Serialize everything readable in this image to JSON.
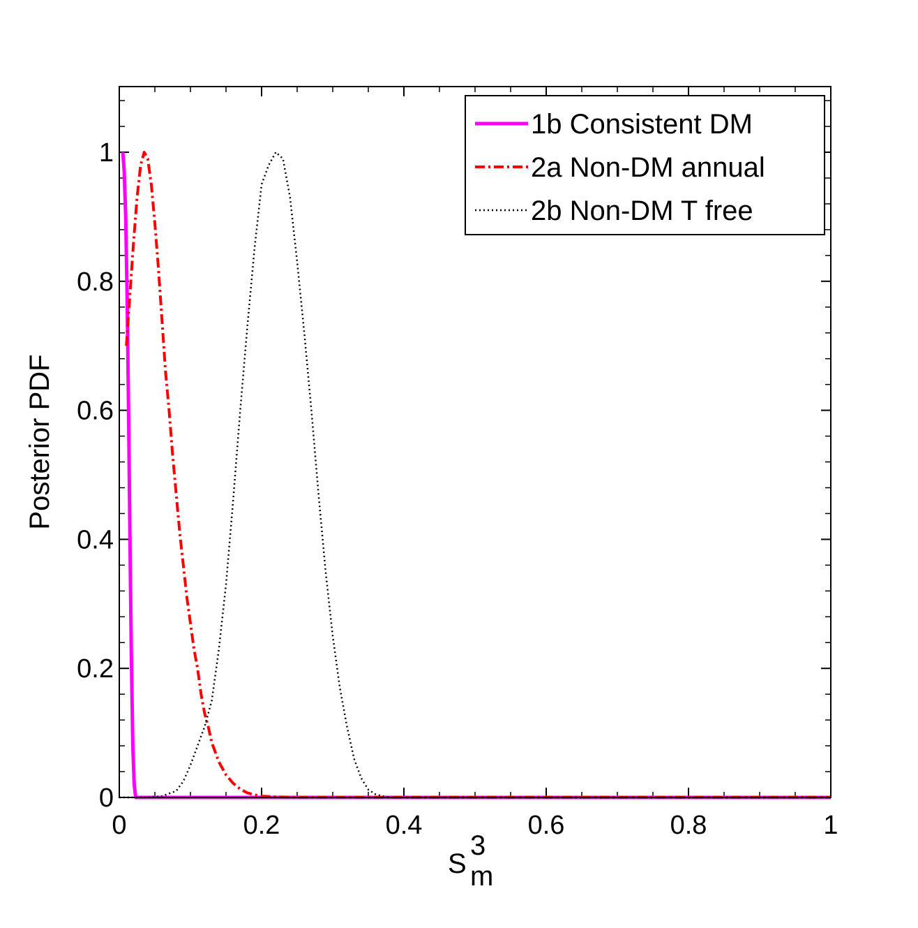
{
  "chart_data": {
    "type": "line",
    "title": "",
    "xlabel": "S",
    "xlabel_superscript": "3",
    "xlabel_subscript": "m",
    "ylabel": "Posterior PDF",
    "xlim": [
      0,
      1
    ],
    "ylim": [
      0,
      1.1
    ],
    "x_ticks": [
      0,
      0.2,
      0.4,
      0.6,
      0.8,
      1
    ],
    "x_tick_labels": [
      "0",
      "0.2",
      "0.4",
      "0.6",
      "0.8",
      "1"
    ],
    "y_ticks": [
      0,
      0.2,
      0.4,
      0.6,
      0.8,
      1
    ],
    "y_tick_labels": [
      "0",
      "0.2",
      "0.4",
      "0.6",
      "0.8",
      "1"
    ],
    "x_minor_step": 0.05,
    "y_minor_step": 0.04,
    "grid": false,
    "legend_position": "top-right",
    "series": [
      {
        "name": "1b Consistent DM",
        "color": "#ff00ff",
        "style": "solid",
        "x": [
          0.005,
          0.007,
          0.009,
          0.011,
          0.013,
          0.015,
          0.017,
          0.019,
          0.021,
          0.023,
          0.03,
          0.1,
          0.3,
          0.5,
          0.7,
          0.9,
          1.0
        ],
        "y": [
          1.0,
          0.97,
          0.9,
          0.78,
          0.6,
          0.4,
          0.22,
          0.08,
          0.02,
          0.0,
          0.0,
          0.0,
          0.0,
          0.0,
          0.0,
          0.0,
          0.0
        ]
      },
      {
        "name": "2a Non-DM annual",
        "color": "#ff0000",
        "style": "dashdot",
        "x": [
          0.01,
          0.015,
          0.02,
          0.025,
          0.03,
          0.035,
          0.04,
          0.045,
          0.05,
          0.055,
          0.06,
          0.065,
          0.07,
          0.075,
          0.08,
          0.085,
          0.09,
          0.095,
          0.1,
          0.105,
          0.11,
          0.115,
          0.12,
          0.125,
          0.13,
          0.135,
          0.14,
          0.15,
          0.16,
          0.17,
          0.18,
          0.19,
          0.2,
          0.22,
          0.25,
          0.3,
          0.4,
          0.6,
          0.8,
          1.0
        ],
        "y": [
          0.7,
          0.78,
          0.86,
          0.93,
          0.98,
          1.0,
          0.99,
          0.95,
          0.89,
          0.82,
          0.74,
          0.66,
          0.6,
          0.53,
          0.47,
          0.41,
          0.36,
          0.31,
          0.27,
          0.23,
          0.2,
          0.16,
          0.13,
          0.11,
          0.085,
          0.07,
          0.055,
          0.035,
          0.022,
          0.013,
          0.007,
          0.004,
          0.002,
          0.001,
          0.0,
          0.0,
          0.0,
          0.0,
          0.0,
          0.0
        ]
      },
      {
        "name": "2b Non-DM T free",
        "color": "#000000",
        "style": "dotted",
        "x": [
          0.0,
          0.04,
          0.06,
          0.08,
          0.09,
          0.1,
          0.11,
          0.12,
          0.13,
          0.14,
          0.15,
          0.16,
          0.17,
          0.18,
          0.19,
          0.2,
          0.21,
          0.22,
          0.23,
          0.24,
          0.25,
          0.26,
          0.27,
          0.28,
          0.29,
          0.3,
          0.31,
          0.32,
          0.33,
          0.34,
          0.35,
          0.36,
          0.37,
          0.38,
          0.4,
          0.5,
          0.6,
          0.8,
          1.0
        ],
        "y": [
          0.0,
          0.0,
          0.002,
          0.01,
          0.025,
          0.05,
          0.08,
          0.11,
          0.15,
          0.23,
          0.33,
          0.46,
          0.6,
          0.73,
          0.85,
          0.95,
          0.98,
          1.0,
          0.99,
          0.93,
          0.83,
          0.72,
          0.6,
          0.47,
          0.35,
          0.25,
          0.17,
          0.11,
          0.06,
          0.03,
          0.012,
          0.005,
          0.002,
          0.0,
          0.0,
          0.0,
          0.0,
          0.0,
          0.0
        ]
      }
    ]
  }
}
